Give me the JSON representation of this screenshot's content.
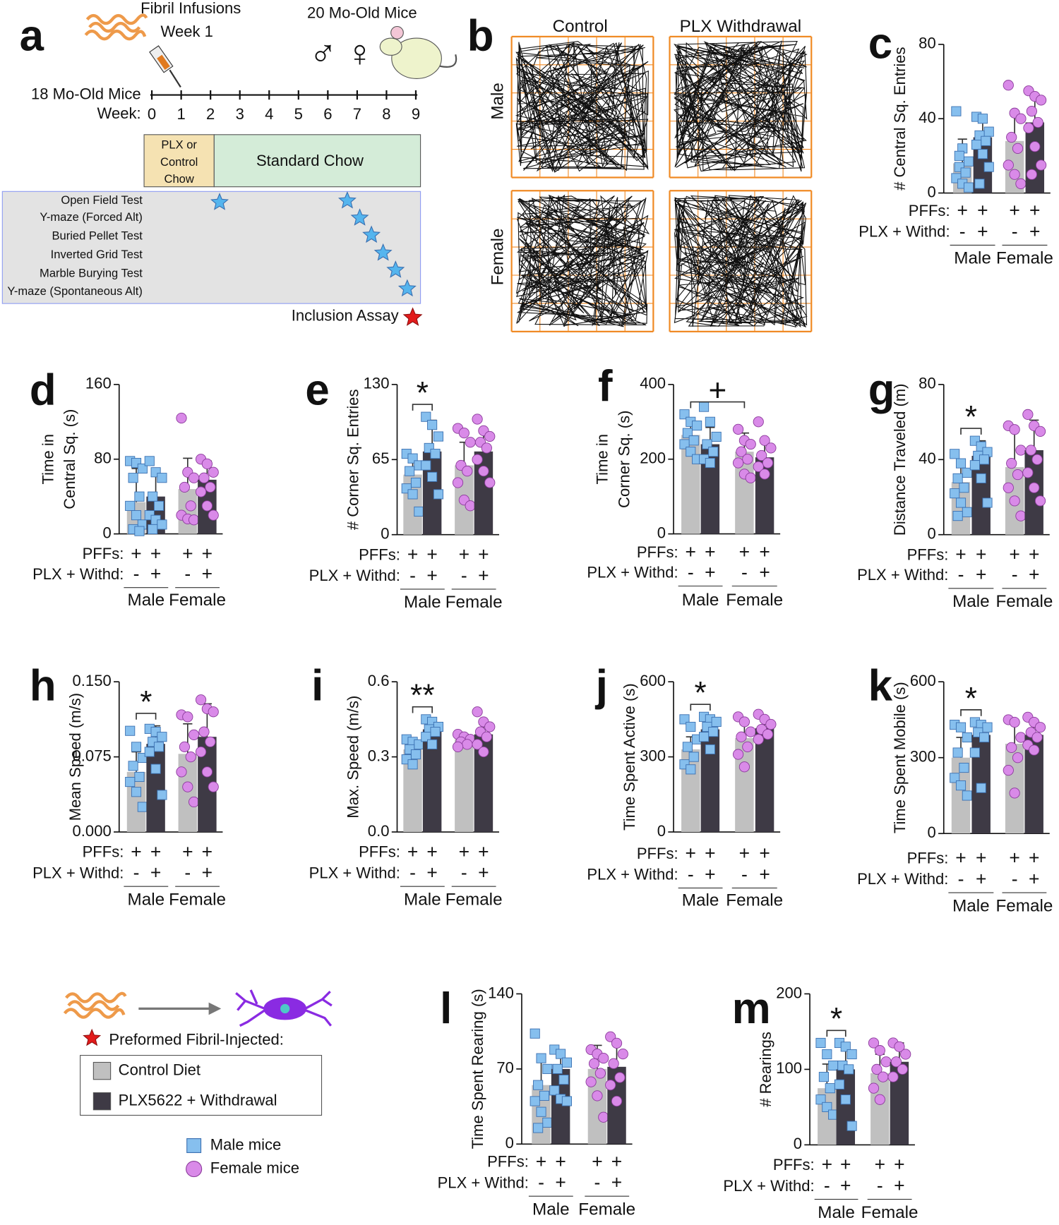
{
  "panel_a": {
    "label": "a",
    "fibril": "Fibril Infusions",
    "week1": "Week 1",
    "old_mice": "20 Mo-Old Mice",
    "sexes": [
      "♂",
      "♀"
    ],
    "young_mice": "18 Mo-Old Mice",
    "week": "Week:",
    "week_ticks": [
      "0",
      "1",
      "2",
      "3",
      "4",
      "5",
      "6",
      "7",
      "8",
      "9"
    ],
    "plx_box": [
      "PLX or",
      "Control",
      "Chow"
    ],
    "chow_box": "Standard Chow",
    "tests": [
      "Open Field Test",
      "Y-maze (Forced Alt)",
      "Buried Pellet Test",
      "Inverted Grid Test",
      "Marble Burying Test",
      "Y-maze (Spontaneous Alt)"
    ],
    "inclusion": "Inclusion Assay"
  },
  "panel_b": {
    "label": "b",
    "columns": [
      "Control",
      "PLX Withdrawal"
    ],
    "rows": [
      "Male",
      "Female"
    ]
  },
  "legend": {
    "title": "Preformed Fibril-Injected:",
    "entries": [
      "Control Diet",
      "PLX5622 + Withdrawal"
    ],
    "entry_colors": [
      "#c0c0c0",
      "#3e3a45"
    ],
    "mice": [
      "Male mice",
      "Female mice"
    ],
    "mice_colors": [
      "#86bfee",
      "#d98ae8"
    ]
  },
  "chart_data": [
    {
      "type": "bar",
      "label": "c",
      "y_label": "# Central Sq. Entries",
      "ylim": [
        0,
        80
      ],
      "yticks": [
        0,
        40,
        80
      ],
      "row_labels": [
        "PFFs:",
        "PLX + Withd:"
      ],
      "pffs": [
        "+",
        "+",
        "+",
        "+"
      ],
      "plx": [
        "-",
        "+",
        "-",
        "+"
      ],
      "groups": [
        "Male",
        "Female"
      ],
      "colors": [
        "#c0c0c0",
        "#3e3a45",
        "#c0c0c0",
        "#3e3a45"
      ],
      "point_colors": [
        "#86bfee",
        "#86bfee",
        "#d98ae8",
        "#d98ae8"
      ],
      "point_shapes": [
        "square",
        "square",
        "circle",
        "circle"
      ],
      "values": [
        16,
        30,
        28,
        38
      ],
      "errors": [
        13,
        10,
        16,
        15
      ],
      "points": [
        [
          44,
          24,
          17,
          14,
          11,
          8,
          5,
          3,
          20
        ],
        [
          41,
          40,
          33,
          31,
          28,
          26,
          21,
          14,
          5
        ],
        [
          58,
          43,
          40,
          30,
          24,
          15,
          10,
          5
        ],
        [
          55,
          52,
          50,
          44,
          38,
          35,
          25,
          15,
          10
        ]
      ]
    },
    {
      "type": "bar",
      "label": "d",
      "y_label": [
        "Time in",
        "Central Sq. (s)"
      ],
      "ylim": [
        0,
        160
      ],
      "yticks": [
        0,
        80,
        160
      ],
      "row_labels": [
        "PFFs:",
        "PLX + Withd:"
      ],
      "pffs": [
        "+",
        "+",
        "+",
        "+"
      ],
      "plx": [
        "-",
        "+",
        "-",
        "+"
      ],
      "groups": [
        "Male",
        "Female"
      ],
      "colors": [
        "#c0c0c0",
        "#3e3a45",
        "#c0c0c0",
        "#3e3a45"
      ],
      "point_colors": [
        "#86bfee",
        "#86bfee",
        "#d98ae8",
        "#d98ae8"
      ],
      "point_shapes": [
        "square",
        "square",
        "circle",
        "circle"
      ],
      "values": [
        34,
        40,
        48,
        58
      ],
      "errors": [
        36,
        25,
        33,
        20
      ],
      "points": [
        [
          78,
          76,
          70,
          60,
          40,
          30,
          20,
          10,
          5,
          3
        ],
        [
          78,
          66,
          60,
          40,
          30,
          20,
          15,
          10,
          5
        ],
        [
          124,
          66,
          60,
          50,
          30,
          20,
          16,
          15
        ],
        [
          80,
          75,
          66,
          60,
          50,
          45,
          30,
          20
        ]
      ]
    },
    {
      "type": "bar",
      "label": "e",
      "y_label": "# Corner Sq. Entries",
      "ylim": [
        0,
        130
      ],
      "yticks": [
        0,
        65,
        130
      ],
      "row_labels": [
        "PFFs:",
        "PLX + Withd:"
      ],
      "pffs": [
        "+",
        "+",
        "+",
        "+"
      ],
      "plx": [
        "-",
        "+",
        "-",
        "+"
      ],
      "groups": [
        "Male",
        "Female"
      ],
      "colors": [
        "#c0c0c0",
        "#3e3a45",
        "#c0c0c0",
        "#3e3a45"
      ],
      "point_colors": [
        "#86bfee",
        "#86bfee",
        "#d98ae8",
        "#d98ae8"
      ],
      "point_shapes": [
        "square",
        "square",
        "circle",
        "circle"
      ],
      "values": [
        52,
        72,
        60,
        72
      ],
      "errors": [
        17,
        27,
        20,
        18
      ],
      "points": [
        [
          70,
          66,
          60,
          55,
          45,
          40,
          35,
          20
        ],
        [
          102,
          95,
          85,
          75,
          70,
          60,
          50,
          35
        ],
        [
          92,
          88,
          80,
          60,
          55,
          45,
          30,
          25
        ],
        [
          100,
          90,
          85,
          80,
          75,
          65,
          55,
          45
        ]
      ],
      "significance": {
        "label": "*",
        "pair": [
          0,
          1
        ]
      }
    },
    {
      "type": "bar",
      "label": "f",
      "y_label": [
        "Time in",
        "Corner Sq. (s)"
      ],
      "ylim": [
        0,
        400
      ],
      "yticks": [
        0,
        200,
        400
      ],
      "row_labels": [
        "PFFs:",
        "PLX + Withd:"
      ],
      "pffs": [
        "+",
        "+",
        "+",
        "+"
      ],
      "plx": [
        "-",
        "+",
        "-",
        "+"
      ],
      "groups": [
        "Male",
        "Female"
      ],
      "colors": [
        "#c0c0c0",
        "#3e3a45",
        "#c0c0c0",
        "#3e3a45"
      ],
      "point_colors": [
        "#86bfee",
        "#86bfee",
        "#d98ae8",
        "#d98ae8"
      ],
      "point_shapes": [
        "square",
        "square",
        "circle",
        "circle"
      ],
      "values": [
        265,
        240,
        220,
        205
      ],
      "errors": [
        40,
        45,
        50,
        40
      ],
      "points": [
        [
          320,
          300,
          290,
          270,
          250,
          240,
          220,
          200
        ],
        [
          340,
          300,
          260,
          240,
          220,
          200,
          190
        ],
        [
          280,
          250,
          240,
          220,
          200,
          190,
          160,
          150
        ],
        [
          300,
          250,
          230,
          210,
          190,
          180,
          160
        ]
      ],
      "significance": {
        "label": "+",
        "pair": [
          0,
          2
        ]
      }
    },
    {
      "type": "bar",
      "label": "g",
      "y_label": "Distance Traveled (m)",
      "ylim": [
        0,
        80
      ],
      "yticks": [
        0,
        40,
        80
      ],
      "row_labels": [
        "PFFs:",
        "PLX + Withd:"
      ],
      "pffs": [
        "+",
        "+",
        "+",
        "+"
      ],
      "plx": [
        "-",
        "+",
        "-",
        "+"
      ],
      "groups": [
        "Male",
        "Female"
      ],
      "colors": [
        "#c0c0c0",
        "#3e3a45",
        "#c0c0c0",
        "#3e3a45"
      ],
      "point_colors": [
        "#86bfee",
        "#86bfee",
        "#d98ae8",
        "#d98ae8"
      ],
      "point_shapes": [
        "square",
        "square",
        "circle",
        "circle"
      ],
      "values": [
        28,
        42,
        36,
        45
      ],
      "errors": [
        9,
        8,
        20,
        16
      ],
      "points": [
        [
          43,
          38,
          33,
          30,
          25,
          22,
          17,
          12,
          10
        ],
        [
          50,
          47,
          44,
          42,
          40,
          37,
          30,
          17
        ],
        [
          58,
          56,
          45,
          38,
          32,
          25,
          18,
          10
        ],
        [
          64,
          58,
          55,
          45,
          40,
          33,
          25,
          18
        ]
      ],
      "significance": {
        "label": "*",
        "pair": [
          0,
          1
        ]
      }
    },
    {
      "type": "bar",
      "label": "h",
      "y_label": "Mean Speed (m/s)",
      "ylim": [
        0,
        0.15
      ],
      "yticks": [
        {
          "value": 0,
          "label": "0.000"
        },
        0.075,
        {
          "value": 0.15,
          "label": "0.150"
        }
      ],
      "row_labels": [
        "PFFs:",
        "PLX + Withd:"
      ],
      "pffs": [
        "+",
        "+",
        "+",
        "+"
      ],
      "plx": [
        "-",
        "+",
        "-",
        "+"
      ],
      "groups": [
        "Male",
        "Female"
      ],
      "colors": [
        "#c0c0c0",
        "#3e3a45",
        "#c0c0c0",
        "#3e3a45"
      ],
      "point_colors": [
        "#86bfee",
        "#86bfee",
        "#d98ae8",
        "#d98ae8"
      ],
      "point_shapes": [
        "square",
        "square",
        "circle",
        "circle"
      ],
      "values": [
        0.06,
        0.088,
        0.078,
        0.095
      ],
      "errors": [
        0.02,
        0.018,
        0.03,
        0.033
      ],
      "points": [
        [
          0.101,
          0.085,
          0.074,
          0.066,
          0.055,
          0.05,
          0.04,
          0.025
        ],
        [
          0.103,
          0.1,
          0.095,
          0.09,
          0.085,
          0.08,
          0.063,
          0.037
        ],
        [
          0.117,
          0.115,
          0.097,
          0.085,
          0.075,
          0.06,
          0.045,
          0.03
        ],
        [
          0.132,
          0.123,
          0.12,
          0.1,
          0.09,
          0.08,
          0.06,
          0.045
        ]
      ],
      "significance": {
        "label": "*",
        "pair": [
          0,
          1
        ]
      }
    },
    {
      "type": "bar",
      "label": "i",
      "y_label": "Max. Speed (m/s)",
      "ylim": [
        0,
        0.6
      ],
      "yticks": [
        {
          "value": 0,
          "label": "0.0"
        },
        0.3,
        0.6
      ],
      "row_labels": [
        "PFFs:",
        "PLX + Withd:"
      ],
      "pffs": [
        "+",
        "+",
        "+",
        "+"
      ],
      "plx": [
        "-",
        "+",
        "-",
        "+"
      ],
      "groups": [
        "Male",
        "Female"
      ],
      "colors": [
        "#c0c0c0",
        "#3e3a45",
        "#c0c0c0",
        "#3e3a45"
      ],
      "point_colors": [
        "#86bfee",
        "#86bfee",
        "#d98ae8",
        "#d98ae8"
      ],
      "point_shapes": [
        "square",
        "square",
        "circle",
        "circle"
      ],
      "values": [
        0.33,
        0.41,
        0.37,
        0.39
      ],
      "errors": [
        0.04,
        0.04,
        0.02,
        0.04
      ],
      "points": [
        [
          0.37,
          0.36,
          0.35,
          0.33,
          0.31,
          0.29,
          0.27
        ],
        [
          0.45,
          0.44,
          0.42,
          0.41,
          0.4,
          0.38,
          0.35
        ],
        [
          0.39,
          0.38,
          0.37,
          0.36,
          0.35,
          0.34
        ],
        [
          0.48,
          0.44,
          0.42,
          0.4,
          0.38,
          0.35,
          0.32
        ]
      ],
      "significance": {
        "label": "**",
        "pair": [
          0,
          1
        ]
      }
    },
    {
      "type": "bar",
      "label": "j",
      "y_label": "Time Spent Active (s)",
      "ylim": [
        0,
        600
      ],
      "yticks": [
        0,
        300,
        600
      ],
      "row_labels": [
        "PFFs:",
        "PLX + Withd:"
      ],
      "pffs": [
        "+",
        "+",
        "+",
        "+"
      ],
      "plx": [
        "-",
        "+",
        "-",
        "+"
      ],
      "groups": [
        "Male",
        "Female"
      ],
      "colors": [
        "#c0c0c0",
        "#3e3a45",
        "#c0c0c0",
        "#3e3a45"
      ],
      "point_colors": [
        "#86bfee",
        "#86bfee",
        "#d98ae8",
        "#d98ae8"
      ],
      "point_shapes": [
        "square",
        "square",
        "circle",
        "circle"
      ],
      "values": [
        330,
        410,
        375,
        415
      ],
      "errors": [
        50,
        45,
        55,
        40
      ],
      "points": [
        [
          450,
          420,
          370,
          340,
          300,
          270,
          250
        ],
        [
          460,
          450,
          440,
          420,
          400,
          380,
          330
        ],
        [
          460,
          440,
          400,
          380,
          340,
          310,
          260
        ],
        [
          470,
          450,
          430,
          410,
          390,
          370
        ]
      ],
      "significance": {
        "label": "*",
        "pair": [
          0,
          1
        ]
      }
    },
    {
      "type": "bar",
      "label": "k",
      "y_label": "Time Spent Mobile (s)",
      "ylim": [
        0,
        600
      ],
      "yticks": [
        0,
        300,
        600
      ],
      "row_labels": [
        "PFFs:",
        "PLX + Withd:"
      ],
      "pffs": [
        "+",
        "+",
        "+",
        "+"
      ],
      "plx": [
        "-",
        "+",
        "-",
        "+"
      ],
      "groups": [
        "Male",
        "Female"
      ],
      "colors": [
        "#c0c0c0",
        "#3e3a45",
        "#c0c0c0",
        "#3e3a45"
      ],
      "point_colors": [
        "#86bfee",
        "#86bfee",
        "#d98ae8",
        "#d98ae8"
      ],
      "point_shapes": [
        "square",
        "square",
        "circle",
        "circle"
      ],
      "values": [
        300,
        390,
        355,
        390
      ],
      "errors": [
        80,
        45,
        85,
        45
      ],
      "points": [
        [
          430,
          420,
          380,
          320,
          260,
          220,
          190,
          150
        ],
        [
          440,
          430,
          420,
          400,
          380,
          320,
          180
        ],
        [
          450,
          440,
          380,
          340,
          300,
          250,
          160
        ],
        [
          460,
          440,
          420,
          400,
          380,
          350,
          330
        ]
      ],
      "significance": {
        "label": "*",
        "pair": [
          0,
          1
        ]
      }
    },
    {
      "type": "bar",
      "label": "l",
      "y_label": "Time Spent Rearing (s)",
      "ylim": [
        0,
        140
      ],
      "yticks": [
        0,
        70,
        140
      ],
      "row_labels": [
        "PFFs:",
        "PLX + Withd:"
      ],
      "pffs": [
        "+",
        "+",
        "+",
        "+"
      ],
      "plx": [
        "-",
        "+",
        "-",
        "+"
      ],
      "groups": [
        "Male",
        "Female"
      ],
      "colors": [
        "#c0c0c0",
        "#3e3a45",
        "#c0c0c0",
        "#3e3a45"
      ],
      "point_colors": [
        "#86bfee",
        "#86bfee",
        "#d98ae8",
        "#d98ae8"
      ],
      "point_shapes": [
        "square",
        "square",
        "circle",
        "circle"
      ],
      "values": [
        55,
        70,
        70,
        72
      ],
      "errors": [
        25,
        15,
        22,
        22
      ],
      "points": [
        [
          103,
          80,
          70,
          55,
          45,
          40,
          30,
          20,
          15
        ],
        [
          88,
          84,
          76,
          70,
          60,
          50,
          42,
          40
        ],
        [
          88,
          84,
          80,
          75,
          66,
          58,
          45,
          25
        ],
        [
          100,
          94,
          84,
          75,
          62,
          55,
          40
        ]
      ]
    },
    {
      "type": "bar",
      "label": "m",
      "y_label": "# Rearings",
      "ylim": [
        0,
        200
      ],
      "yticks": [
        0,
        100,
        200
      ],
      "row_labels": [
        "PFFs:",
        "PLX + Withd:"
      ],
      "pffs": [
        "+",
        "+",
        "+",
        "+"
      ],
      "plx": [
        "-",
        "+",
        "-",
        "+"
      ],
      "groups": [
        "Male",
        "Female"
      ],
      "colors": [
        "#c0c0c0",
        "#3e3a45",
        "#c0c0c0",
        "#3e3a45"
      ],
      "point_colors": [
        "#86bfee",
        "#86bfee",
        "#d98ae8",
        "#d98ae8"
      ],
      "point_shapes": [
        "square",
        "square",
        "circle",
        "circle"
      ],
      "values": [
        75,
        100,
        95,
        110
      ],
      "errors": [
        32,
        30,
        25,
        25
      ],
      "points": [
        [
          135,
          120,
          105,
          90,
          75,
          60,
          50,
          40
        ],
        [
          135,
          130,
          120,
          105,
          100,
          80,
          60,
          25
        ],
        [
          135,
          125,
          110,
          100,
          90,
          75,
          60
        ],
        [
          135,
          130,
          120,
          110,
          100,
          90
        ]
      ],
      "significance": {
        "label": "*",
        "pair": [
          0,
          1
        ]
      }
    }
  ]
}
